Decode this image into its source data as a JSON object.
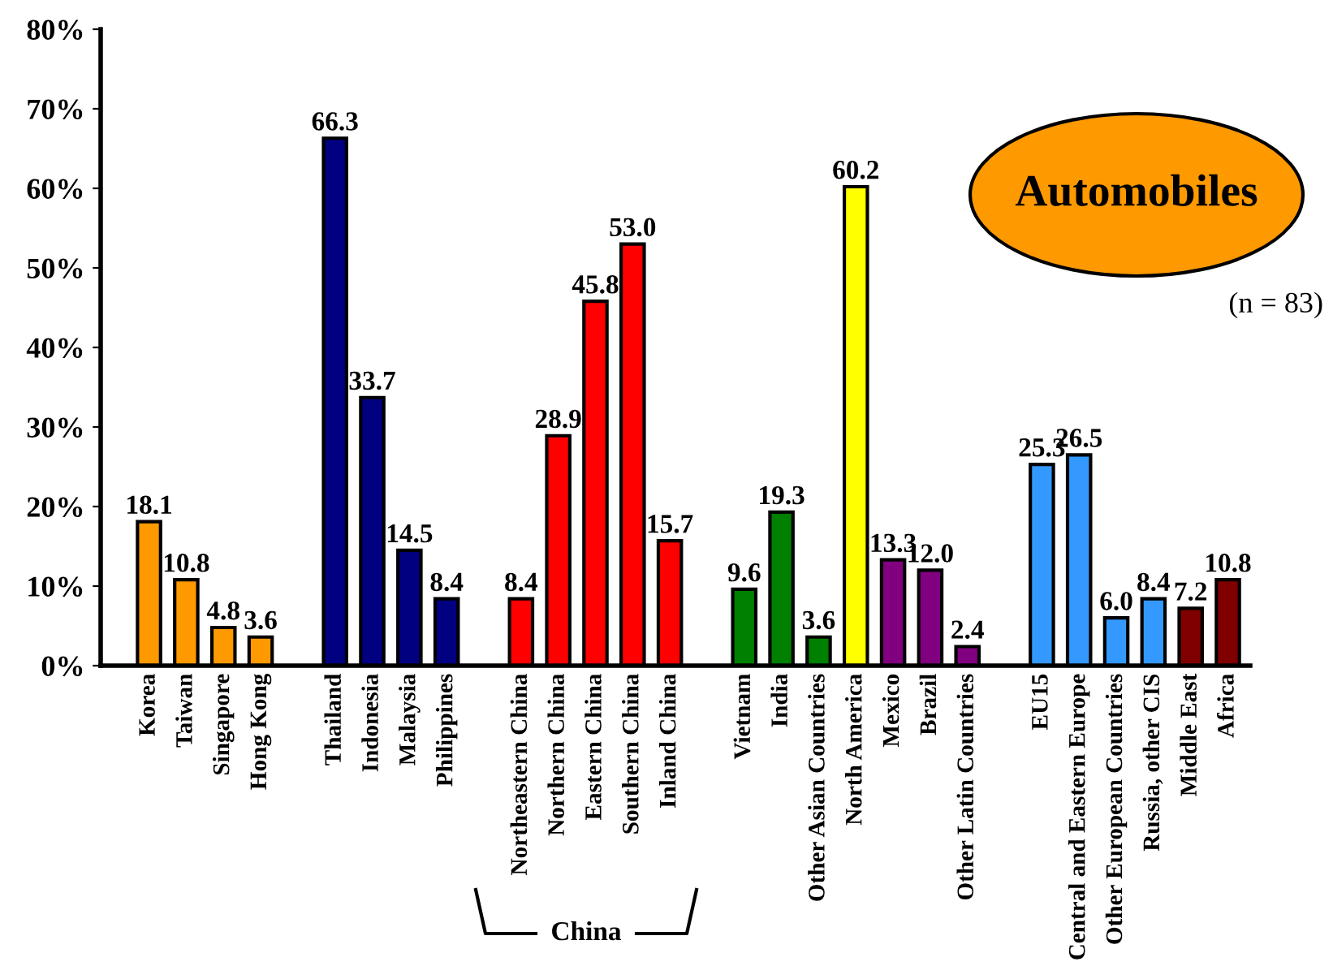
{
  "chart_data": {
    "type": "bar",
    "categories": [
      "Korea",
      "Taiwan",
      "Singapore",
      "Hong Kong",
      null,
      "Thailand",
      "Indonesia",
      "Malaysia",
      "Philippines",
      null,
      "Northeastern China",
      "Northern China",
      "Eastern China",
      "Southern China",
      "Inland China",
      null,
      "Vietnam",
      "India",
      "Other Asian Countries",
      "North America",
      "Mexico",
      "Brazil",
      "Other Latin Countries",
      null,
      "EU15",
      "Central and Eastern Europe",
      "Other European Countries",
      "Russia, other CIS",
      "Middle East",
      "Africa"
    ],
    "values": [
      18.1,
      10.8,
      4.8,
      3.6,
      null,
      66.3,
      33.7,
      14.5,
      8.4,
      null,
      8.4,
      28.9,
      45.8,
      53.0,
      15.7,
      null,
      9.6,
      19.3,
      3.6,
      60.2,
      13.3,
      12.0,
      2.4,
      null,
      25.3,
      26.5,
      6.0,
      8.4,
      7.2,
      10.8
    ],
    "value_labels": [
      "18.1",
      "10.8",
      "4.8",
      "3.6",
      null,
      "66.3",
      "33.7",
      "14.5",
      "8.4",
      null,
      "8.4",
      "28.9",
      "45.8",
      "53.0",
      "15.7",
      null,
      "9.6",
      "19.3",
      "3.6",
      "60.2",
      "13.3",
      "12.0",
      "2.4",
      null,
      "25.3",
      "26.5",
      "6.0",
      "8.4",
      "7.2",
      "10.8"
    ],
    "colors": [
      "#ff9900",
      "#ff9900",
      "#ff9900",
      "#ff9900",
      null,
      "#000080",
      "#000080",
      "#000080",
      "#000080",
      null,
      "#ff0000",
      "#ff0000",
      "#ff0000",
      "#ff0000",
      "#ff0000",
      null,
      "#008000",
      "#008000",
      "#008000",
      "#ffff00",
      "#800080",
      "#800080",
      "#800080",
      null,
      "#3399ff",
      "#3399ff",
      "#3399ff",
      "#3399ff",
      "#800000",
      "#800000"
    ],
    "ylim": [
      0,
      80
    ],
    "yticks": [
      {
        "value": 0,
        "label": "0%"
      },
      {
        "value": 10,
        "label": "10%"
      },
      {
        "value": 20,
        "label": "20%"
      },
      {
        "value": 30,
        "label": "30%"
      },
      {
        "value": 40,
        "label": "40%"
      },
      {
        "value": 50,
        "label": "50%"
      },
      {
        "value": 60,
        "label": "60%"
      },
      {
        "value": 70,
        "label": "70%"
      },
      {
        "value": 80,
        "label": "80%"
      }
    ],
    "grid": false,
    "legend": false,
    "annotations": [
      "Automobiles",
      "(n = 83)",
      "China"
    ]
  }
}
